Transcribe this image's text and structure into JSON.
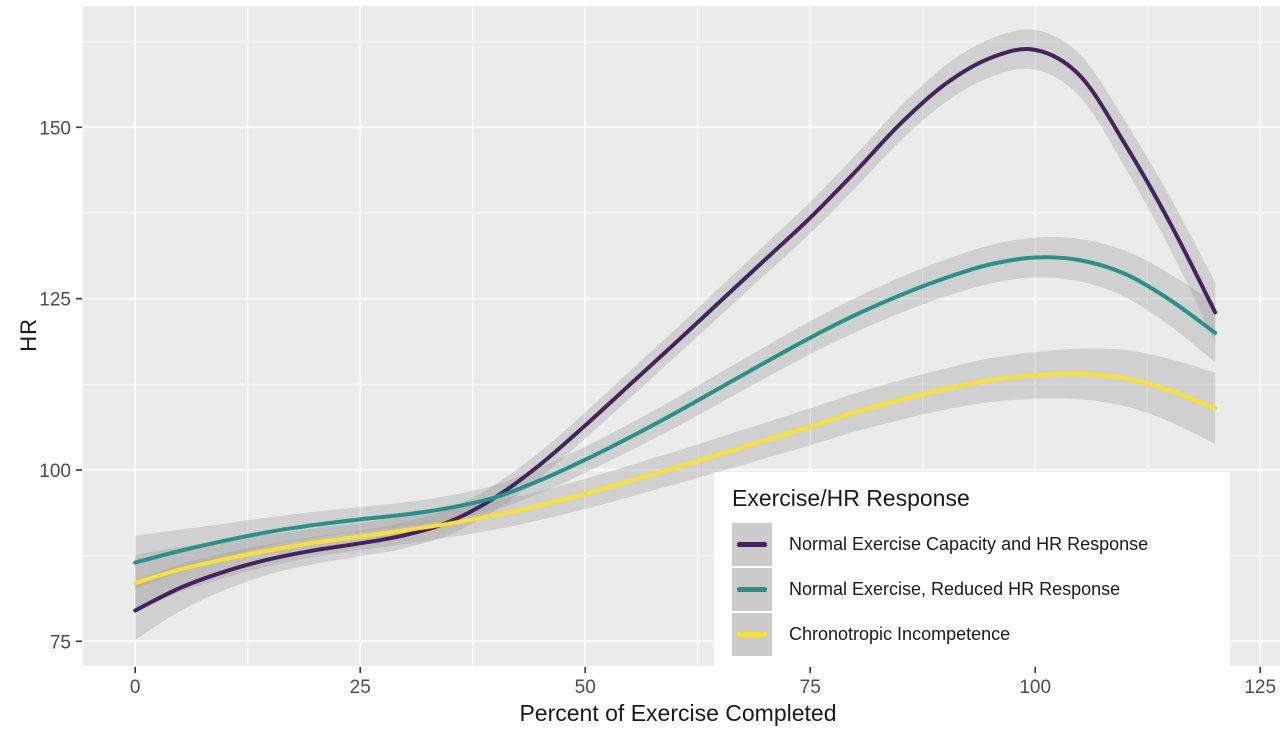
{
  "figure": {
    "background": "#ffffff",
    "panel_background": "#ebebeb",
    "grid_color": "#ffffff",
    "ribbon_color": "#999999",
    "ribbon_opacity": 0.32,
    "tick_mark_color": "#333333",
    "axis_text_color": "#4d4d4d",
    "axis_title_color": "#1a1a1a"
  },
  "chart_data": {
    "type": "line",
    "title": "",
    "xlabel": "Percent of Exercise Completed",
    "ylabel": "HR",
    "xlim": [
      -5.8,
      127.2
    ],
    "ylim": [
      71.4,
      167.7
    ],
    "x_ticks": [
      0,
      25,
      50,
      75,
      100,
      125
    ],
    "y_ticks": [
      75,
      100,
      125,
      150
    ],
    "grid": "major+minor, white on grey panel",
    "line_width": 4,
    "legend": {
      "title": "Exercise/HR Response",
      "position": "bottom-right-inside"
    },
    "x": [
      0,
      5,
      10,
      15,
      20,
      25,
      30,
      35,
      40,
      45,
      50,
      55,
      60,
      65,
      70,
      75,
      80,
      85,
      90,
      95,
      100,
      105,
      110,
      115,
      120
    ],
    "series": [
      {
        "name": "Normal Exercise Capacity and HR Response",
        "color": "#44235f",
        "values": [
          79.5,
          82.8,
          85.2,
          87.0,
          88.3,
          89.3,
          90.5,
          92.5,
          96.0,
          100.8,
          106.5,
          112.5,
          118.5,
          124.6,
          130.7,
          136.8,
          143.5,
          150.5,
          156.3,
          160.1,
          161.3,
          157.5,
          147.5,
          136.0,
          123.0
        ],
        "ci_halfwidth": [
          4.3,
          3.4,
          2.7,
          2.2,
          2.0,
          1.9,
          1.9,
          1.9,
          1.9,
          1.9,
          1.9,
          2.0,
          2.0,
          2.1,
          2.2,
          2.3,
          2.4,
          2.5,
          2.7,
          2.8,
          2.9,
          3.1,
          3.4,
          3.8,
          4.4
        ]
      },
      {
        "name": "Normal Exercise, Reduced HR Response",
        "color": "#27918a",
        "values": [
          86.5,
          88.2,
          89.7,
          91.0,
          92.0,
          92.8,
          93.5,
          94.5,
          96.0,
          98.5,
          101.5,
          104.8,
          108.3,
          112.0,
          115.7,
          119.3,
          122.6,
          125.5,
          128.0,
          130.0,
          131.0,
          130.6,
          128.6,
          124.8,
          120.0
        ],
        "ci_halfwidth": [
          3.9,
          3.1,
          2.5,
          2.1,
          1.9,
          1.8,
          1.8,
          1.8,
          1.8,
          1.9,
          1.9,
          2.0,
          2.1,
          2.2,
          2.3,
          2.4,
          2.5,
          2.6,
          2.7,
          2.8,
          2.9,
          3.1,
          3.4,
          3.8,
          4.3
        ]
      },
      {
        "name": "Chronotropic Incompetence",
        "color": "#f9e132",
        "values": [
          83.5,
          85.5,
          87.0,
          88.3,
          89.4,
          90.3,
          91.2,
          92.2,
          93.4,
          94.8,
          96.5,
          98.4,
          100.3,
          102.3,
          104.3,
          106.3,
          108.4,
          110.2,
          111.8,
          113.1,
          113.8,
          114.0,
          113.4,
          111.6,
          109.0
        ],
        "ci_halfwidth": [
          4.1,
          3.3,
          2.7,
          2.3,
          2.1,
          2.0,
          2.0,
          2.0,
          2.1,
          2.1,
          2.2,
          2.3,
          2.4,
          2.5,
          2.6,
          2.7,
          2.8,
          2.9,
          3.0,
          3.2,
          3.4,
          3.7,
          4.1,
          4.6,
          5.2
        ]
      }
    ]
  }
}
